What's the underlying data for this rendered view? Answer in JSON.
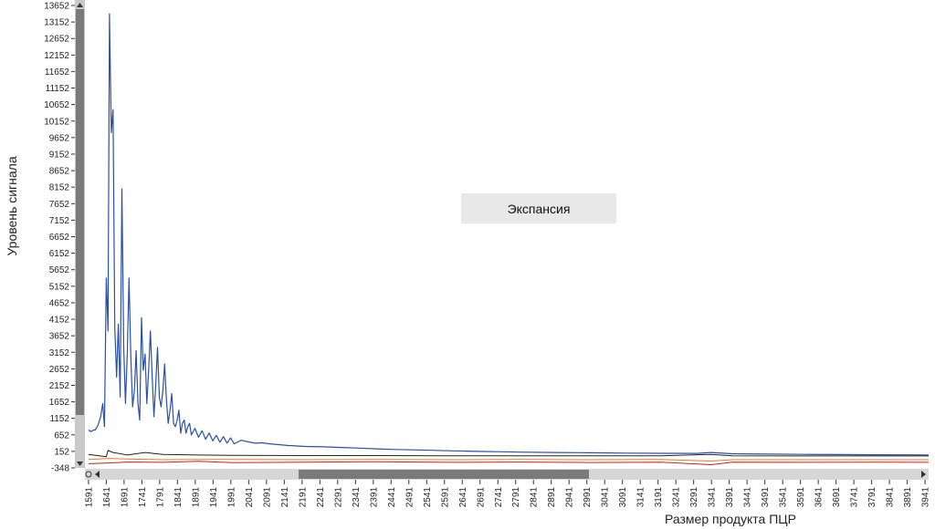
{
  "chart_data": {
    "type": "line",
    "title": "",
    "xlabel": "Размер продукта ПЦР",
    "ylabel": "Уровень сигнала",
    "legend": [
      "Экспансия"
    ],
    "legend_placement": "center",
    "grid": false,
    "xlim": [
      1581,
      3951
    ],
    "ylim": [
      -348,
      13652
    ],
    "x_ticks": [
      "1591",
      "1641",
      "1691",
      "1741",
      "1791",
      "1841",
      "1891",
      "1941",
      "1991",
      "2041",
      "2091",
      "2141",
      "2191",
      "2241",
      "2291",
      "2341",
      "2391",
      "2441",
      "2491",
      "2541",
      "2591",
      "2641",
      "2691",
      "2741",
      "2791",
      "2841",
      "2891",
      "2941",
      "2991",
      "3041",
      "3091",
      "3141",
      "3191",
      "3241",
      "3291",
      "3341",
      "3391",
      "3441",
      "3491",
      "3541",
      "3591",
      "3641",
      "3691",
      "3741",
      "3791",
      "3841",
      "3891",
      "3941"
    ],
    "y_ticks": [
      "13652",
      "13152",
      "12652",
      "12152",
      "11652",
      "11152",
      "10652",
      "10152",
      "9652",
      "9152",
      "8652",
      "8152",
      "7652",
      "7152",
      "6652",
      "6152",
      "5652",
      "5152",
      "4652",
      "4152",
      "3652",
      "3152",
      "2652",
      "2152",
      "1652",
      "1152",
      "652",
      "152",
      "-348"
    ],
    "series": [
      {
        "color": "#2b4fa8",
        "x": [
          1591,
          1598,
          1606,
          1610,
          1618,
          1625,
          1631,
          1636,
          1641,
          1646,
          1650,
          1655,
          1660,
          1665,
          1670,
          1675,
          1680,
          1685,
          1690,
          1695,
          1700,
          1705,
          1710,
          1715,
          1720,
          1725,
          1730,
          1735,
          1740,
          1745,
          1750,
          1755,
          1760,
          1765,
          1770,
          1775,
          1780,
          1785,
          1790,
          1795,
          1800,
          1805,
          1810,
          1815,
          1820,
          1825,
          1830,
          1835,
          1840,
          1845,
          1850,
          1855,
          1860,
          1865,
          1870,
          1875,
          1880,
          1890,
          1900,
          1910,
          1920,
          1930,
          1940,
          1950,
          1960,
          1970,
          1980,
          1990,
          2000,
          2020,
          2040,
          2060,
          2080,
          2100,
          2150,
          2200,
          2250,
          2300,
          2350,
          2400,
          2450,
          2500,
          2550,
          2600,
          2650,
          2700,
          2750,
          2800,
          2900,
          3000,
          3100,
          3200,
          3300,
          3340,
          3400,
          3500,
          3600,
          3700,
          3800,
          3900,
          3951
        ],
        "y": [
          800,
          750,
          800,
          800,
          950,
          1200,
          1600,
          900,
          5400,
          3800,
          13400,
          9800,
          10500,
          3900,
          2400,
          4000,
          1800,
          8100,
          3300,
          1600,
          3100,
          5400,
          3000,
          1500,
          2000,
          3200,
          1600,
          1100,
          4200,
          2600,
          3100,
          1600,
          2600,
          3800,
          2400,
          1200,
          2200,
          3300,
          1800,
          1500,
          2000,
          2800,
          1700,
          1000,
          1400,
          1900,
          1000,
          900,
          1100,
          1400,
          700,
          1000,
          1100,
          700,
          900,
          1000,
          650,
          850,
          580,
          780,
          520,
          710,
          470,
          640,
          430,
          600,
          400,
          560,
          380,
          490,
          440,
          400,
          410,
          380,
          330,
          300,
          290,
          270,
          250,
          230,
          210,
          200,
          185,
          170,
          160,
          150,
          140,
          130,
          120,
          110,
          100,
          95,
          90,
          120,
          80,
          70,
          60,
          55,
          50,
          48,
          45
        ]
      },
      {
        "color": "#222222",
        "x": [
          1591,
          1641,
          1646,
          1660,
          1700,
          1750,
          1800,
          1900,
          2000,
          2200,
          2400,
          2600,
          2800,
          3000,
          3200,
          3340,
          3400,
          3600,
          3800,
          3951
        ],
        "y": [
          60,
          -10,
          180,
          120,
          40,
          120,
          60,
          40,
          30,
          25,
          25,
          20,
          20,
          20,
          20,
          60,
          20,
          15,
          15,
          15
        ]
      },
      {
        "color": "#e87b22",
        "x": [
          1591,
          1650,
          1700,
          1800,
          1900,
          2000,
          2200,
          2400,
          2600,
          2800,
          3000,
          3200,
          3340,
          3400,
          3600,
          3800,
          3951
        ],
        "y": [
          -90,
          -60,
          -80,
          -100,
          -90,
          -95,
          -100,
          -95,
          -100,
          -95,
          -100,
          -95,
          -140,
          -100,
          -100,
          -100,
          -100
        ]
      },
      {
        "color": "#cc1f1f",
        "x": [
          1591,
          1650,
          1700,
          1800,
          1900,
          2000,
          2200,
          2400,
          2600,
          2800,
          3000,
          3200,
          3340,
          3400,
          3600,
          3800,
          3951
        ],
        "y": [
          -220,
          -200,
          -170,
          -180,
          -150,
          -190,
          -175,
          -160,
          -180,
          -170,
          -185,
          -175,
          -250,
          -175,
          -180,
          -175,
          -180
        ]
      }
    ]
  }
}
